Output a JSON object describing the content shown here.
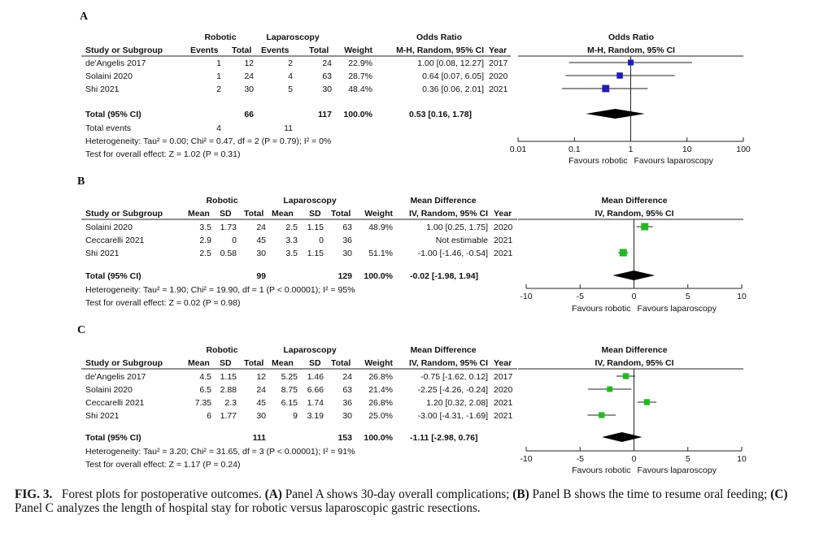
{
  "caption": {
    "fig": "FIG. 3.",
    "lead": "Forest plots for postoperative outcomes.",
    "a_tag": "(A)",
    "a_text": "Panel A shows 30-day overall complications;",
    "b_tag": "(B)",
    "b_text": "Panel B shows the time to resume oral feeding;",
    "c_tag": "(C)",
    "c_text": "Panel C analyzes the length of hospital stay for robotic versus laparoscopic gastric resections."
  },
  "chart_data": [
    {
      "panel": "A",
      "type": "forest",
      "effect_type": "or",
      "scale": "log",
      "group1": "Robotic",
      "group2": "Laparoscopy",
      "group1_cols": [
        "Events",
        "Total"
      ],
      "group2_cols": [
        "Events",
        "Total"
      ],
      "head_study": "Study or Subgroup",
      "head_weight": "Weight",
      "effect_title": "Odds Ratio",
      "effect_method": "M-H, Random, 95% CI",
      "year_head": "Year",
      "plot_title": "Odds Ratio",
      "plot_method": "M-H, Random, 95% CI",
      "color": "#1f1fb4",
      "studies": [
        {
          "name": "de'Angelis 2017",
          "g1": [
            "1",
            "12"
          ],
          "g2": [
            "2",
            "24"
          ],
          "weight": "22.9%",
          "est_text": "1.00 [0.08, 12.27]",
          "year": "2017",
          "est": 1.0,
          "lo": 0.08,
          "hi": 12.27,
          "w": 22.9
        },
        {
          "name": "Solaini 2020",
          "g1": [
            "1",
            "24"
          ],
          "g2": [
            "4",
            "63"
          ],
          "weight": "28.7%",
          "est_text": "0.64 [0.07, 6.05]",
          "year": "2020",
          "est": 0.64,
          "lo": 0.07,
          "hi": 6.05,
          "w": 28.7
        },
        {
          "name": "Shi 2021",
          "g1": [
            "2",
            "30"
          ],
          "g2": [
            "5",
            "30"
          ],
          "weight": "48.4%",
          "est_text": "0.36 [0.06, 2.01]",
          "year": "2021",
          "est": 0.36,
          "lo": 0.06,
          "hi": 2.01,
          "w": 48.4
        }
      ],
      "total": {
        "label": "Total (95% CI)",
        "g1": "66",
        "g2": "117",
        "weight": "100.0%",
        "est_text": "0.53 [0.16, 1.78]",
        "est": 0.53,
        "lo": 0.16,
        "hi": 1.78
      },
      "events_row": {
        "label": "Total events",
        "g1": "4",
        "g2": "11"
      },
      "heterogeneity": "Heterogeneity: Tau² = 0.00; Chi² = 0.47, df = 2 (P = 0.79); I² = 0%",
      "overall": "Test for overall effect: Z = 1.02 (P = 0.31)",
      "axis": {
        "min": 0.01,
        "max": 100,
        "ticks": [
          0.01,
          0.1,
          1,
          10,
          100
        ],
        "tick_labels": [
          "0.01",
          "0.1",
          "1",
          "10",
          "100"
        ],
        "null": 1
      },
      "favours_left": "Favours robotic",
      "favours_right": "Favours laparoscopy"
    },
    {
      "panel": "B",
      "type": "forest",
      "effect_type": "md",
      "scale": "linear",
      "group1": "Robotic",
      "group2": "Laparoscopy",
      "group1_cols": [
        "Mean",
        "SD",
        "Total"
      ],
      "group2_cols": [
        "Mean",
        "SD",
        "Total"
      ],
      "head_study": "Study or Subgroup",
      "head_weight": "Weight",
      "effect_title": "Mean Difference",
      "effect_method": "IV, Random, 95% CI",
      "year_head": "Year",
      "plot_title": "Mean Difference",
      "plot_method": "IV, Random, 95% CI",
      "color": "#22b822",
      "studies": [
        {
          "name": "Solaini 2020",
          "g1": [
            "3.5",
            "1.73",
            "24"
          ],
          "g2": [
            "2.5",
            "1.15",
            "63"
          ],
          "weight": "48.9%",
          "est_text": "1.00 [0.25, 1.75]",
          "year": "2020",
          "est": 1.0,
          "lo": 0.25,
          "hi": 1.75,
          "w": 48.9
        },
        {
          "name": "Ceccarelli 2021",
          "g1": [
            "2.9",
            "0",
            "45"
          ],
          "g2": [
            "3.3",
            "0",
            "36"
          ],
          "weight": "",
          "est_text": "Not estimable",
          "year": "2021",
          "est": null,
          "lo": null,
          "hi": null,
          "w": 0
        },
        {
          "name": "Shi 2021",
          "g1": [
            "2.5",
            "0.58",
            "30"
          ],
          "g2": [
            "3.5",
            "1.15",
            "30"
          ],
          "weight": "51.1%",
          "est_text": "-1.00 [-1.46, -0.54]",
          "year": "2021",
          "est": -1.0,
          "lo": -1.46,
          "hi": -0.54,
          "w": 51.1
        }
      ],
      "total": {
        "label": "Total (95% CI)",
        "g1": "99",
        "g2": "129",
        "weight": "100.0%",
        "est_text": "-0.02 [-1.98, 1.94]",
        "est": -0.02,
        "lo": -1.98,
        "hi": 1.94
      },
      "events_row": null,
      "heterogeneity": "Heterogeneity: Tau² = 1.90; Chi² = 19.90, df = 1 (P < 0.00001); I² = 95%",
      "overall": "Test for overall effect: Z = 0.02 (P = 0.98)",
      "axis": {
        "min": -10,
        "max": 10,
        "ticks": [
          -10,
          -5,
          0,
          5,
          10
        ],
        "tick_labels": [
          "-10",
          "-5",
          "0",
          "5",
          "10"
        ],
        "null": 0
      },
      "favours_left": "Favours robotic",
      "favours_right": "Favours laparoscopy"
    },
    {
      "panel": "C",
      "type": "forest",
      "effect_type": "md",
      "scale": "linear",
      "group1": "Robotic",
      "group2": "Laparoscopy",
      "group1_cols": [
        "Mean",
        "SD",
        "Total"
      ],
      "group2_cols": [
        "Mean",
        "SD",
        "Total"
      ],
      "head_study": "Study or Subgroup",
      "head_weight": "Weight",
      "effect_title": "Mean Difference",
      "effect_method": "IV, Random, 95% CI",
      "year_head": "Year",
      "plot_title": "Mean Difference",
      "plot_method": "IV, Random, 95% CI",
      "color": "#22b822",
      "studies": [
        {
          "name": "de'Angelis 2017",
          "g1": [
            "4.5",
            "1.15",
            "12"
          ],
          "g2": [
            "5.25",
            "1.46",
            "24"
          ],
          "weight": "26.8%",
          "est_text": "-0.75 [-1.62, 0.12]",
          "year": "2017",
          "est": -0.75,
          "lo": -1.62,
          "hi": 0.12,
          "w": 26.8
        },
        {
          "name": "Solaini 2020",
          "g1": [
            "6.5",
            "2.88",
            "24"
          ],
          "g2": [
            "8.75",
            "6.66",
            "63"
          ],
          "weight": "21.4%",
          "est_text": "-2.25 [-4.26, -0.24]",
          "year": "2020",
          "est": -2.25,
          "lo": -4.26,
          "hi": -0.24,
          "w": 21.4
        },
        {
          "name": "Ceccarelli 2021",
          "g1": [
            "7.35",
            "2.3",
            "45"
          ],
          "g2": [
            "6.15",
            "1.74",
            "36"
          ],
          "weight": "26.8%",
          "est_text": "1.20 [0.32, 2.08]",
          "year": "2021",
          "est": 1.2,
          "lo": 0.32,
          "hi": 2.08,
          "w": 26.8
        },
        {
          "name": "Shi 2021",
          "g1": [
            "6",
            "1.77",
            "30"
          ],
          "g2": [
            "9",
            "3.19",
            "30"
          ],
          "weight": "25.0%",
          "est_text": "-3.00 [-4.31, -1.69]",
          "year": "2021",
          "est": -3.0,
          "lo": -4.31,
          "hi": -1.69,
          "w": 25.0
        }
      ],
      "total": {
        "label": "Total (95% CI)",
        "g1": "111",
        "g2": "153",
        "weight": "100.0%",
        "est_text": "-1.11 [-2.98, 0.76]",
        "est": -1.11,
        "lo": -2.98,
        "hi": 0.76
      },
      "events_row": null,
      "heterogeneity": "Heterogeneity: Tau² = 3.20; Chi² = 31.65, df = 3 (P < 0.00001); I² = 91%",
      "overall": "Test for overall effect: Z = 1.17 (P = 0.24)",
      "axis": {
        "min": -10,
        "max": 10,
        "ticks": [
          -10,
          -5,
          0,
          5,
          10
        ],
        "tick_labels": [
          "-10",
          "-5",
          "0",
          "5",
          "10"
        ],
        "null": 0
      },
      "favours_left": "Favours robotic",
      "favours_right": "Favours laparoscopy"
    }
  ]
}
